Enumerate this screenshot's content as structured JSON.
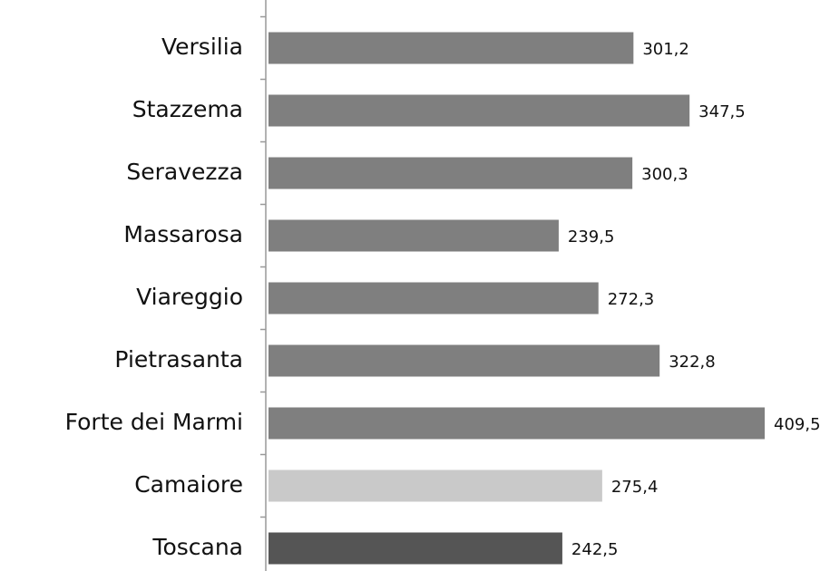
{
  "chart_data": {
    "type": "hbar",
    "categories": [
      "Versilia",
      "Stazzema",
      "Seravezza",
      "Massarosa",
      "Viareggio",
      "Pietrasanta",
      "Forte dei Marmi",
      "Camaiore",
      "Toscana"
    ],
    "values": [
      301.2,
      347.5,
      300.3,
      239.5,
      272.3,
      322.8,
      409.5,
      275.4,
      242.5
    ],
    "value_labels": [
      "301,2",
      "347,5",
      "300,3",
      "239,5",
      "272,3",
      "322,8",
      "409,5",
      "275,4",
      "242,5"
    ],
    "colors": [
      "#7f7f7f",
      "#7f7f7f",
      "#7f7f7f",
      "#7f7f7f",
      "#7f7f7f",
      "#7f7f7f",
      "#7f7f7f",
      "#c9c9c9",
      "#555555"
    ]
  }
}
